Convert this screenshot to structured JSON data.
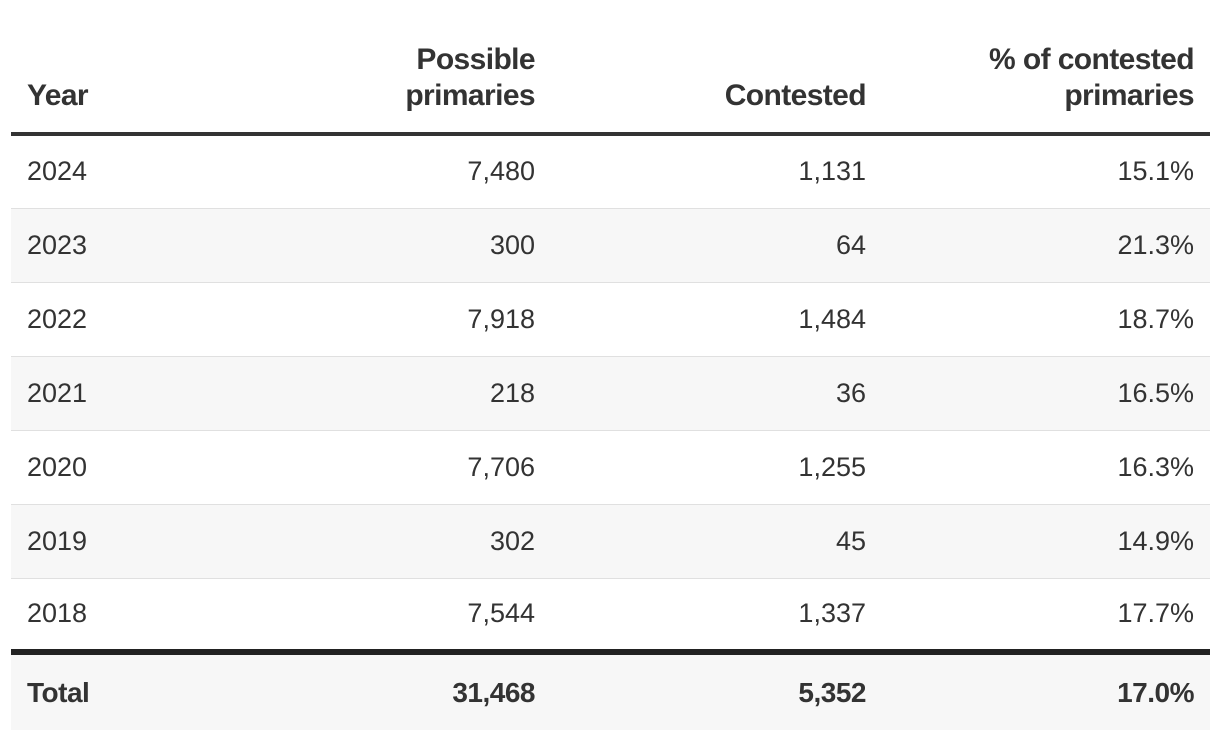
{
  "chart_data": {
    "type": "table",
    "columns": [
      {
        "key": "year",
        "label": [
          "Year"
        ]
      },
      {
        "key": "possible",
        "label": [
          "Possible",
          "primaries"
        ]
      },
      {
        "key": "contested",
        "label": [
          "Contested"
        ]
      },
      {
        "key": "pct",
        "label": [
          "% of contested",
          "primaries"
        ]
      }
    ],
    "rows": [
      {
        "year": "2024",
        "possible": "7,480",
        "contested": "1,131",
        "pct": "15.1%"
      },
      {
        "year": "2023",
        "possible": "300",
        "contested": "64",
        "pct": "21.3%"
      },
      {
        "year": "2022",
        "possible": "7,918",
        "contested": "1,484",
        "pct": "18.7%"
      },
      {
        "year": "2021",
        "possible": "218",
        "contested": "36",
        "pct": "16.5%"
      },
      {
        "year": "2020",
        "possible": "7,706",
        "contested": "1,255",
        "pct": "16.3%"
      },
      {
        "year": "2019",
        "possible": "302",
        "contested": "45",
        "pct": "14.9%"
      },
      {
        "year": "2018",
        "possible": "7,544",
        "contested": "1,337",
        "pct": "17.7%"
      }
    ],
    "total": {
      "year": "Total",
      "possible": "31,468",
      "contested": "5,352",
      "pct": "17.0%"
    }
  },
  "colors": {
    "text": "#333333",
    "row_alt_background": "#f7f7f7",
    "row_divider": "#e0e0e0",
    "header_rule": "#333333",
    "total_rule": "#222222"
  }
}
